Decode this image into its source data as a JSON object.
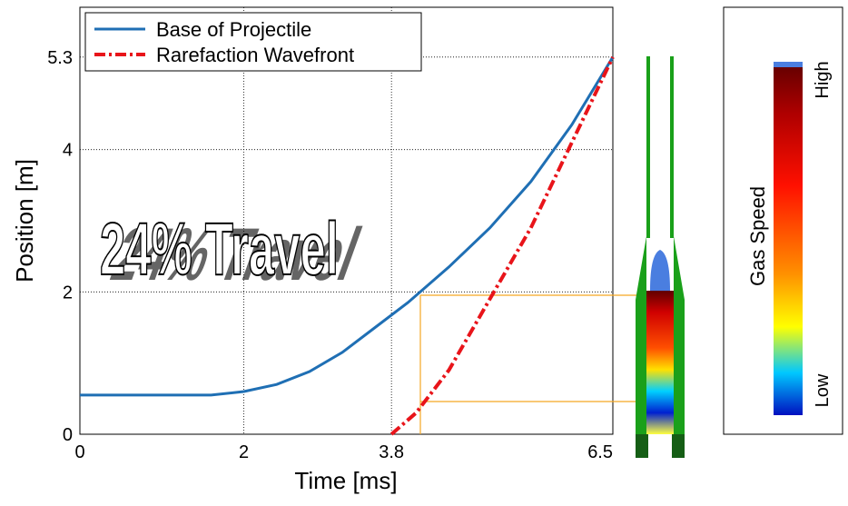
{
  "chart_data": {
    "type": "line",
    "xlabel": "Time [ms]",
    "ylabel": "Position [m]",
    "annotation": "24% Travel",
    "colorbar": {
      "label": "Gas Speed",
      "high": "High",
      "low": "Low"
    },
    "xlim": [
      0,
      6.5
    ],
    "ylim": [
      0,
      6
    ],
    "xticks": [
      0,
      2,
      3.8,
      6.5
    ],
    "yticks": [
      0,
      2,
      4,
      5.3
    ],
    "grid": true,
    "legend": "upper left",
    "series": [
      {
        "name": "Base of Projectile",
        "color": "#1f6fb4",
        "x": [
          0,
          1.6,
          2,
          2.4,
          2.8,
          3.2,
          3.6,
          4.0,
          4.5,
          5.0,
          5.5,
          6.0,
          6.5
        ],
        "values": [
          0.55,
          0.55,
          0.6,
          0.7,
          0.88,
          1.15,
          1.5,
          1.85,
          2.35,
          2.9,
          3.55,
          4.35,
          5.3
        ]
      },
      {
        "name": "Rarefaction Wavefront",
        "color": "#e8141a",
        "x": [
          3.8,
          4.1,
          4.5,
          5.0,
          5.5,
          6.0,
          6.5
        ],
        "values": [
          0,
          0.3,
          0.9,
          1.9,
          2.9,
          4.1,
          5.3
        ]
      }
    ]
  }
}
